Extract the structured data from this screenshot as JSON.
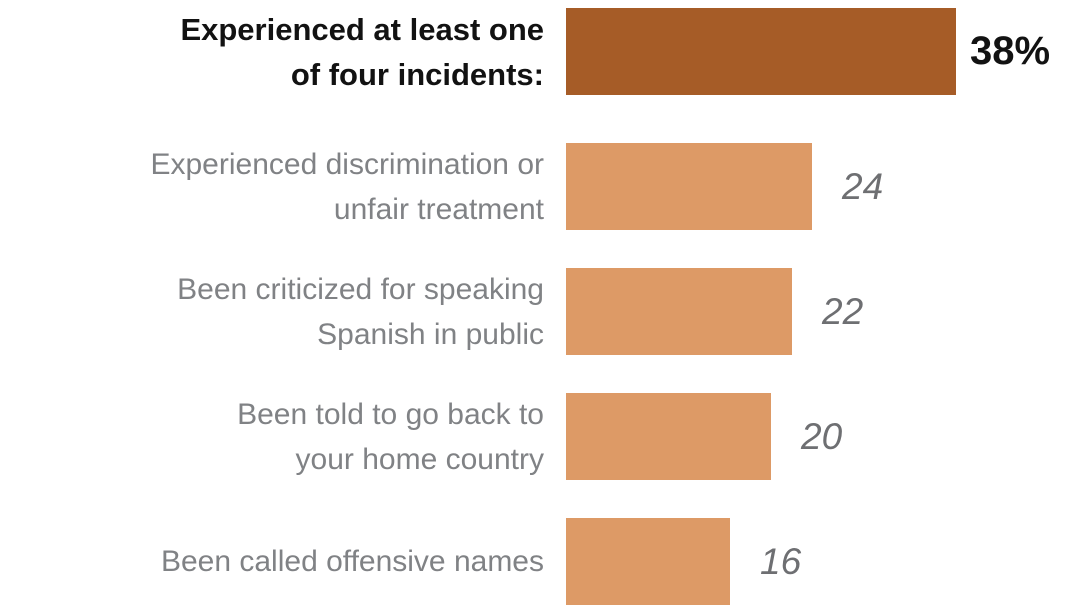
{
  "chart_data": {
    "type": "bar",
    "orientation": "horizontal",
    "title": "",
    "xlabel": "",
    "ylabel": "",
    "grid": false,
    "legend": false,
    "xlim": [
      0,
      38
    ],
    "categories": [
      "Experienced at least one of four incidents:",
      "Experienced discrimination or unfair treatment",
      "Been criticized  for speaking Spanish in public",
      "Been told to go back to your home country",
      "Been called offensive names"
    ],
    "values": [
      38,
      24,
      22,
      20,
      16
    ],
    "value_labels": [
      "38%",
      "24",
      "22",
      "20",
      "16"
    ],
    "colors": {
      "bar_emphasis": "#A65C27",
      "bar_default": "#DD9A66",
      "label_gray": "#808285",
      "value_gray": "#6E6F72",
      "emphasis_text": "#121212"
    }
  },
  "rows": [
    {
      "label": "Experienced at least one\nof four incidents:",
      "value": 38,
      "value_label": "38%",
      "emphasis": true
    },
    {
      "label": "Experienced discrimination or\nunfair treatment",
      "value": 24,
      "value_label": "24",
      "emphasis": false
    },
    {
      "label": "Been criticized  for speaking\nSpanish in public",
      "value": 22,
      "value_label": "22",
      "emphasis": false
    },
    {
      "label": "Been told to go back to\nyour home country",
      "value": 20,
      "value_label": "20",
      "emphasis": false
    },
    {
      "label": "Been called offensive names",
      "value": 16,
      "value_label": "16",
      "emphasis": false
    }
  ]
}
